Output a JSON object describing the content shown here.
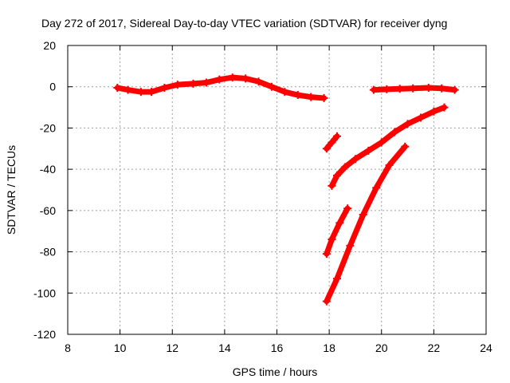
{
  "chart_data": {
    "type": "scatter",
    "title": "Day 272 of 2017, Sidereal Day-to-day VTEC variation (SDTVAR) for receiver dyng",
    "xlabel": "GPS time / hours",
    "ylabel": "SDTVAR / TECUs",
    "xlim": [
      8,
      24
    ],
    "ylim": [
      -120,
      20
    ],
    "xticks": [
      8,
      10,
      12,
      14,
      16,
      18,
      20,
      22,
      24
    ],
    "yticks": [
      20,
      0,
      -20,
      -40,
      -60,
      -80,
      -100,
      -120
    ],
    "grid": true,
    "color": "#ff0000",
    "series": [
      {
        "x": [
          9.9,
          10.3,
          10.8,
          11.2,
          11.7,
          12.2,
          12.8,
          13.3,
          13.8,
          14.3,
          14.8,
          15.3,
          15.8,
          16.3,
          16.8,
          17.3,
          17.8
        ],
        "y": [
          -0.5,
          -1.5,
          -2.5,
          -2.5,
          -0.5,
          1,
          1.5,
          2,
          3.5,
          4.5,
          4,
          2.5,
          0,
          -2.5,
          -4,
          -5,
          -5.5
        ]
      },
      {
        "x": [
          19.7,
          20.2,
          20.7,
          21.2,
          21.8,
          22.3,
          22.8
        ],
        "y": [
          -1.5,
          -1.2,
          -1,
          -0.8,
          -0.5,
          -0.8,
          -1.5
        ]
      },
      {
        "x": [
          17.9,
          18.1,
          18.3
        ],
        "y": [
          -30,
          -27,
          -24
        ]
      },
      {
        "x": [
          18.1,
          18.3,
          18.6,
          19.0,
          19.5,
          20.0,
          20.5,
          21.0,
          21.5,
          22.0,
          22.4
        ],
        "y": [
          -48,
          -43,
          -39,
          -35,
          -31,
          -27,
          -22,
          -18,
          -15,
          -12,
          -10
        ]
      },
      {
        "x": [
          17.9,
          18.1,
          18.4,
          18.7
        ],
        "y": [
          -81,
          -74,
          -66,
          -59
        ]
      },
      {
        "x": [
          17.9,
          18.3,
          18.8,
          19.3,
          19.8,
          20.3,
          20.9
        ],
        "y": [
          -104,
          -93,
          -77,
          -62,
          -49,
          -38,
          -29
        ]
      }
    ]
  }
}
